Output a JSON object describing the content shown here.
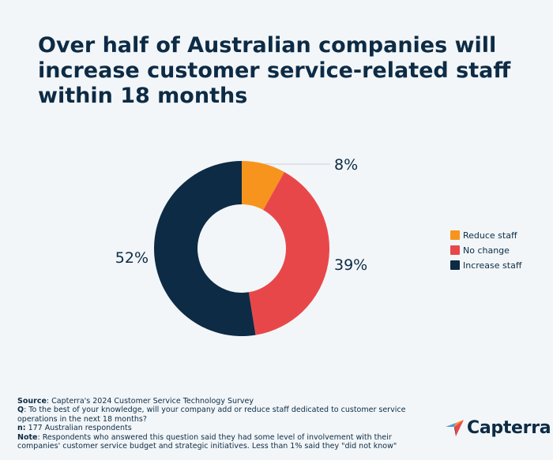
{
  "chart_data": {
    "type": "pie",
    "title": "Over half of Australian companies will increase customer service-related staff within 18 months",
    "categories": [
      "Reduce staff",
      "No change",
      "Increase staff"
    ],
    "values": [
      8,
      39,
      52
    ],
    "data_labels": [
      "8%",
      "39%",
      "52%"
    ],
    "colors": [
      "#f7941e",
      "#e8474a",
      "#0d2b45"
    ],
    "donut": true,
    "legend_position": "right"
  },
  "footnotes": {
    "source_label": "Source",
    "source_text": ": Capterra's 2024 Customer Service Technology Survey",
    "q_label": "Q",
    "q_text": ": To the best of your knowledge, will your company add or reduce staff dedicated to customer service operations in the next 18 months?",
    "n_label": "n:",
    "n_text": " 177 Australian respondents",
    "note_label": "Note",
    "note_text": ": Respondents who answered this question said they had some level of involvement with their companies' customer service budget and strategic initiatives. Less than 1% said they \"did not know\""
  },
  "logo": {
    "text": "Capterra",
    "icon": "capterra-arrow-icon",
    "colors": [
      "#4b9cd3",
      "#f7941e",
      "#e8474a",
      "#0d2b45"
    ]
  }
}
